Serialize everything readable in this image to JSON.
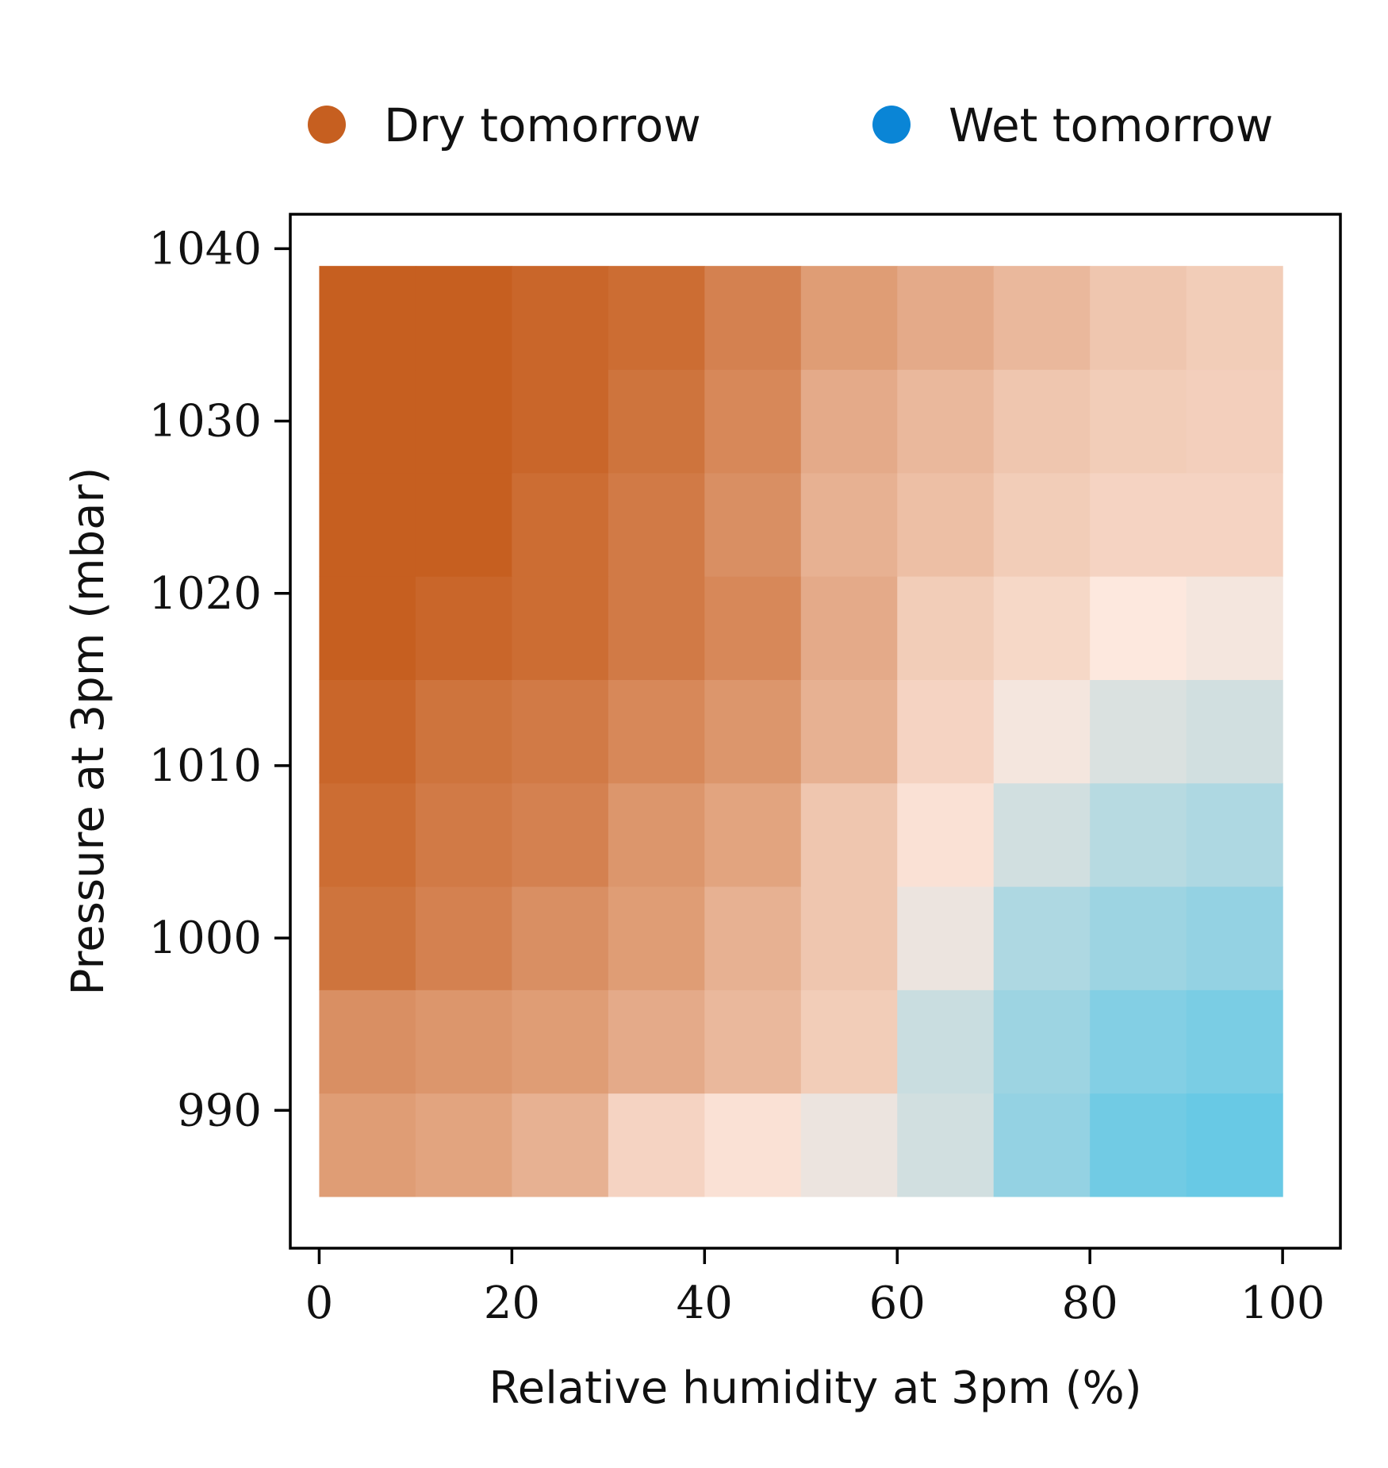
{
  "chart_data": {
    "type": "heatmap",
    "title": "",
    "xlabel": "Relative humidity at 3pm (%)",
    "ylabel": "Pressure at 3pm (mbar)",
    "xlim": [
      -3,
      106
    ],
    "ylim": [
      982,
      1042
    ],
    "x_ticks": [
      0,
      20,
      40,
      60,
      80,
      100
    ],
    "y_ticks": [
      990,
      1000,
      1010,
      1020,
      1030,
      1040
    ],
    "x_tick_labels": [
      "0",
      "20",
      "40",
      "60",
      "80",
      "100"
    ],
    "y_tick_labels": [
      "990",
      "1000",
      "1010",
      "1020",
      "1030",
      "1040"
    ],
    "grid": false,
    "legend_position": "top",
    "legend": [
      {
        "label": "Dry tomorrow",
        "color": "#C65F20"
      },
      {
        "label": "Wet tomorrow",
        "color": "#0A85D6"
      }
    ],
    "x_range": [
      0,
      100
    ],
    "y_range": [
      985,
      1039
    ],
    "colorscale": {
      "dry": "#C65F20",
      "neutral": "#FDE8DE",
      "wet": "#4EC4E6"
    },
    "x_edges": [
      0,
      10,
      20,
      30,
      40,
      50,
      60,
      70,
      80,
      90,
      100
    ],
    "y_edges": [
      985,
      991,
      997,
      1003,
      1009,
      1015,
      1021,
      1027,
      1033,
      1039
    ],
    "rows_bottom_to_top": [
      [
        -0.55,
        -0.5,
        -0.4,
        -0.15,
        -0.05,
        0.1,
        0.25,
        0.6,
        0.8,
        0.85
      ],
      [
        -0.65,
        -0.6,
        -0.55,
        -0.45,
        -0.35,
        -0.2,
        0.3,
        0.55,
        0.7,
        0.75
      ],
      [
        -0.85,
        -0.75,
        -0.65,
        -0.55,
        -0.4,
        -0.25,
        0.1,
        0.45,
        0.55,
        0.6
      ],
      [
        -0.9,
        -0.8,
        -0.75,
        -0.6,
        -0.5,
        -0.25,
        -0.05,
        0.25,
        0.4,
        0.45
      ],
      [
        -0.95,
        -0.85,
        -0.8,
        -0.7,
        -0.6,
        -0.4,
        -0.15,
        0.05,
        0.2,
        0.25
      ],
      [
        -1.0,
        -0.95,
        -0.9,
        -0.8,
        -0.7,
        -0.45,
        -0.2,
        -0.12,
        0.0,
        0.05
      ],
      [
        -1.0,
        -1.0,
        -0.9,
        -0.8,
        -0.65,
        -0.4,
        -0.3,
        -0.2,
        -0.15,
        -0.15
      ],
      [
        -1.0,
        -1.0,
        -0.95,
        -0.85,
        -0.7,
        -0.45,
        -0.35,
        -0.25,
        -0.2,
        -0.18
      ],
      [
        -1.0,
        -1.0,
        -0.95,
        -0.9,
        -0.75,
        -0.55,
        -0.45,
        -0.35,
        -0.25,
        -0.2
      ]
    ]
  }
}
